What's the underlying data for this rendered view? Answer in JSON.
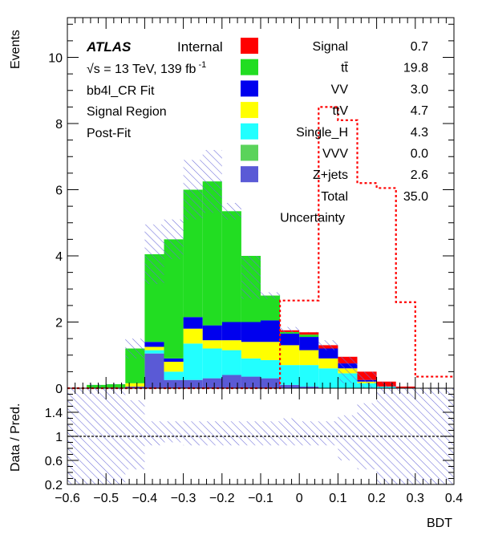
{
  "chart_data": {
    "type": "bar",
    "stacked": true,
    "ylabel": "Events",
    "xlabel": "BDT",
    "ratio_ylabel": "Data / Pred.",
    "xlim": [
      -0.6,
      0.4
    ],
    "ylim": [
      0,
      11.2
    ],
    "ratio_ylim": [
      0.2,
      1.8
    ],
    "xticks": [
      "−0.6",
      "−0.5",
      "−0.4",
      "−0.3",
      "−0.2",
      "−0.1",
      "0",
      "0.1",
      "0.2",
      "0.3",
      "0.4"
    ],
    "yticks": [
      "0",
      "2",
      "4",
      "6",
      "8",
      "10"
    ],
    "ratio_yticks": [
      "0.2",
      "0.6",
      "1",
      "1.4"
    ],
    "bin_edges": [
      -0.6,
      -0.55,
      -0.5,
      -0.45,
      -0.4,
      -0.35,
      -0.3,
      -0.25,
      -0.2,
      -0.15,
      -0.1,
      -0.05,
      0.0,
      0.05,
      0.1,
      0.15,
      0.2,
      0.25,
      0.3,
      0.35,
      0.4
    ],
    "series": [
      {
        "name": "Z+jets",
        "color": "#5a5ad6",
        "values": [
          0,
          0,
          0.02,
          0.05,
          1.05,
          0.25,
          0.25,
          0.3,
          0.4,
          0.35,
          0.3,
          0.1,
          0.05,
          0,
          0,
          0,
          0,
          0,
          0,
          0
        ]
      },
      {
        "name": "VVV",
        "color": "#5bd35b",
        "values": [
          0,
          0,
          0,
          0,
          0,
          0,
          0,
          0,
          0,
          0,
          0,
          0,
          0,
          0,
          0,
          0,
          0,
          0,
          0,
          0
        ]
      },
      {
        "name": "Single_H",
        "color": "#22ffff",
        "values": [
          0,
          0,
          0,
          0,
          0.1,
          0.25,
          1.1,
          0.9,
          0.75,
          0.55,
          0.55,
          0.6,
          0.65,
          0.6,
          0.45,
          0.15,
          0.05,
          0,
          0,
          0
        ]
      },
      {
        "name": "ttV",
        "color": "#ffff00",
        "values": [
          0,
          0,
          0,
          0.1,
          0.1,
          0.3,
          0.45,
          0.25,
          0.3,
          0.5,
          0.55,
          0.6,
          0.45,
          0.3,
          0.15,
          0.05,
          0,
          0,
          0,
          0
        ]
      },
      {
        "name": "VV",
        "color": "#0000ee",
        "values": [
          0,
          0,
          0,
          0,
          0.15,
          0.1,
          0.35,
          0.45,
          0.55,
          0.6,
          0.65,
          0.35,
          0.4,
          0.3,
          0.15,
          0.05,
          0,
          0,
          0,
          0
        ]
      },
      {
        "name": "tt̄",
        "color": "#22dd22",
        "values": [
          0,
          0.1,
          0.1,
          1.05,
          2.65,
          3.6,
          3.85,
          4.35,
          3.35,
          2.0,
          0.75,
          0.05,
          0.07,
          0,
          0,
          0,
          0,
          0,
          0,
          0
        ]
      },
      {
        "name": "Signal",
        "color": "#ff0000",
        "values": [
          0,
          0,
          0,
          0,
          0,
          0,
          0,
          0,
          0,
          0,
          0,
          0.05,
          0.07,
          0.1,
          0.2,
          0.25,
          0.15,
          0.05,
          0,
          0
        ]
      }
    ],
    "signal_overlay": {
      "name": "Signal (scaled)",
      "color": "#ff0000",
      "values": [
        0,
        0,
        0,
        0,
        0,
        0,
        0,
        0,
        0,
        0,
        0,
        2.65,
        2.65,
        8.5,
        8.1,
        6.2,
        6.05,
        2.6,
        0.35,
        0.35
      ]
    },
    "uncertainty_totals": [
      0,
      0.15,
      0.15,
      1.5,
      4.95,
      5.1,
      6.9,
      7.2,
      5.6,
      3.35,
      2.9,
      1.85,
      1.7,
      1.45,
      0.55,
      0.25,
      0.1,
      0,
      0,
      0
    ],
    "ratio_band": [
      {
        "lo": 0.2,
        "hi": 1.8
      },
      {
        "lo": 0.2,
        "hi": 1.8
      },
      {
        "lo": 0.2,
        "hi": 1.8
      },
      {
        "lo": 0.45,
        "hi": 1.6
      },
      {
        "lo": 0.85,
        "hi": 1.25
      },
      {
        "lo": 0.9,
        "hi": 1.25
      },
      {
        "lo": 0.85,
        "hi": 1.25
      },
      {
        "lo": 0.85,
        "hi": 1.25
      },
      {
        "lo": 0.85,
        "hi": 1.25
      },
      {
        "lo": 0.85,
        "hi": 1.25
      },
      {
        "lo": 0.85,
        "hi": 1.25
      },
      {
        "lo": 0.85,
        "hi": 1.3
      },
      {
        "lo": 0.85,
        "hi": 1.25
      },
      {
        "lo": 0.85,
        "hi": 1.25
      },
      {
        "lo": 0.6,
        "hi": 1.35
      },
      {
        "lo": 0.45,
        "hi": 1.55
      },
      {
        "lo": 0.2,
        "hi": 1.8
      },
      {
        "lo": 0.2,
        "hi": 1.8
      },
      {
        "lo": 0.2,
        "hi": 1.8
      },
      {
        "lo": 0.2,
        "hi": 1.8
      }
    ]
  },
  "labels": {
    "atlas": "ATLAS",
    "internal": "Internal",
    "energy_lumi": "√s = 13 TeV, 139 fb",
    "lumi_exp": "-1",
    "fit": "bb4l_CR Fit",
    "region": "Signal Region",
    "stage": "Post-Fit"
  },
  "legend": [
    {
      "label": "Signal",
      "value": "0.7",
      "color": "#ff0000"
    },
    {
      "label": "tt̄",
      "value": "19.8",
      "color": "#22dd22"
    },
    {
      "label": "VV",
      "value": "3.0",
      "color": "#0000ee"
    },
    {
      "label": "ttV",
      "value": "4.7",
      "color": "#ffff00"
    },
    {
      "label": "Single_H",
      "value": "4.3",
      "color": "#22ffff"
    },
    {
      "label": "VVV",
      "value": "0.0",
      "color": "#5bd35b"
    },
    {
      "label": "Z+jets",
      "value": "2.6",
      "color": "#5a5ad6"
    }
  ],
  "legend_total": {
    "label": "Total",
    "value": "35.0"
  },
  "legend_uncertainty": "Uncertainty"
}
